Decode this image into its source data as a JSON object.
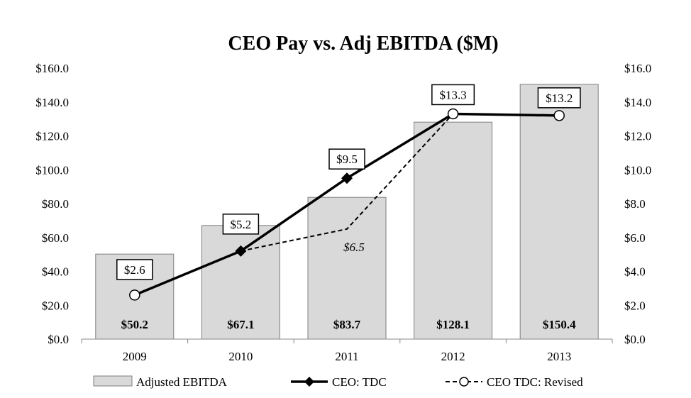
{
  "chart_data": {
    "type": "bar",
    "title": "CEO Pay vs. Adj EBITDA ($M)",
    "categories": [
      "2009",
      "2010",
      "2011",
      "2012",
      "2013"
    ],
    "y_left": {
      "range": [
        0,
        160
      ],
      "ticks": [
        "$0.0",
        "$20.0",
        "$40.0",
        "$60.0",
        "$80.0",
        "$100.0",
        "$120.0",
        "$140.0",
        "$160.0"
      ]
    },
    "y_right": {
      "range": [
        0,
        16
      ],
      "ticks": [
        "$0.0",
        "$2.0",
        "$4.0",
        "$6.0",
        "$8.0",
        "$10.0",
        "$12.0",
        "$14.0",
        "$16.0"
      ]
    },
    "grid": false,
    "legend_position": "bottom",
    "series": [
      {
        "name": "Adjusted EBITDA",
        "type": "bar",
        "axis": "left",
        "color": "#d9d9d9",
        "values": [
          50.2,
          67.1,
          83.7,
          128.1,
          150.4
        ],
        "labels": [
          "$50.2",
          "$67.1",
          "$83.7",
          "$128.1",
          "$150.4"
        ]
      },
      {
        "name": "CEO: TDC",
        "type": "line",
        "axis": "right",
        "color": "#000000",
        "marker": "diamond",
        "values": [
          2.6,
          5.2,
          9.5,
          13.3,
          13.2
        ],
        "labels": [
          "$2.6",
          "$5.2",
          "$9.5",
          "$13.3",
          "$13.2"
        ]
      },
      {
        "name": "CEO TDC: Revised",
        "type": "line",
        "axis": "right",
        "color": "#000000",
        "line_style": "dashed",
        "marker": "open-circle",
        "values": [
          null,
          5.2,
          6.5,
          13.3,
          13.2
        ],
        "annotation": "$6.5"
      }
    ]
  }
}
